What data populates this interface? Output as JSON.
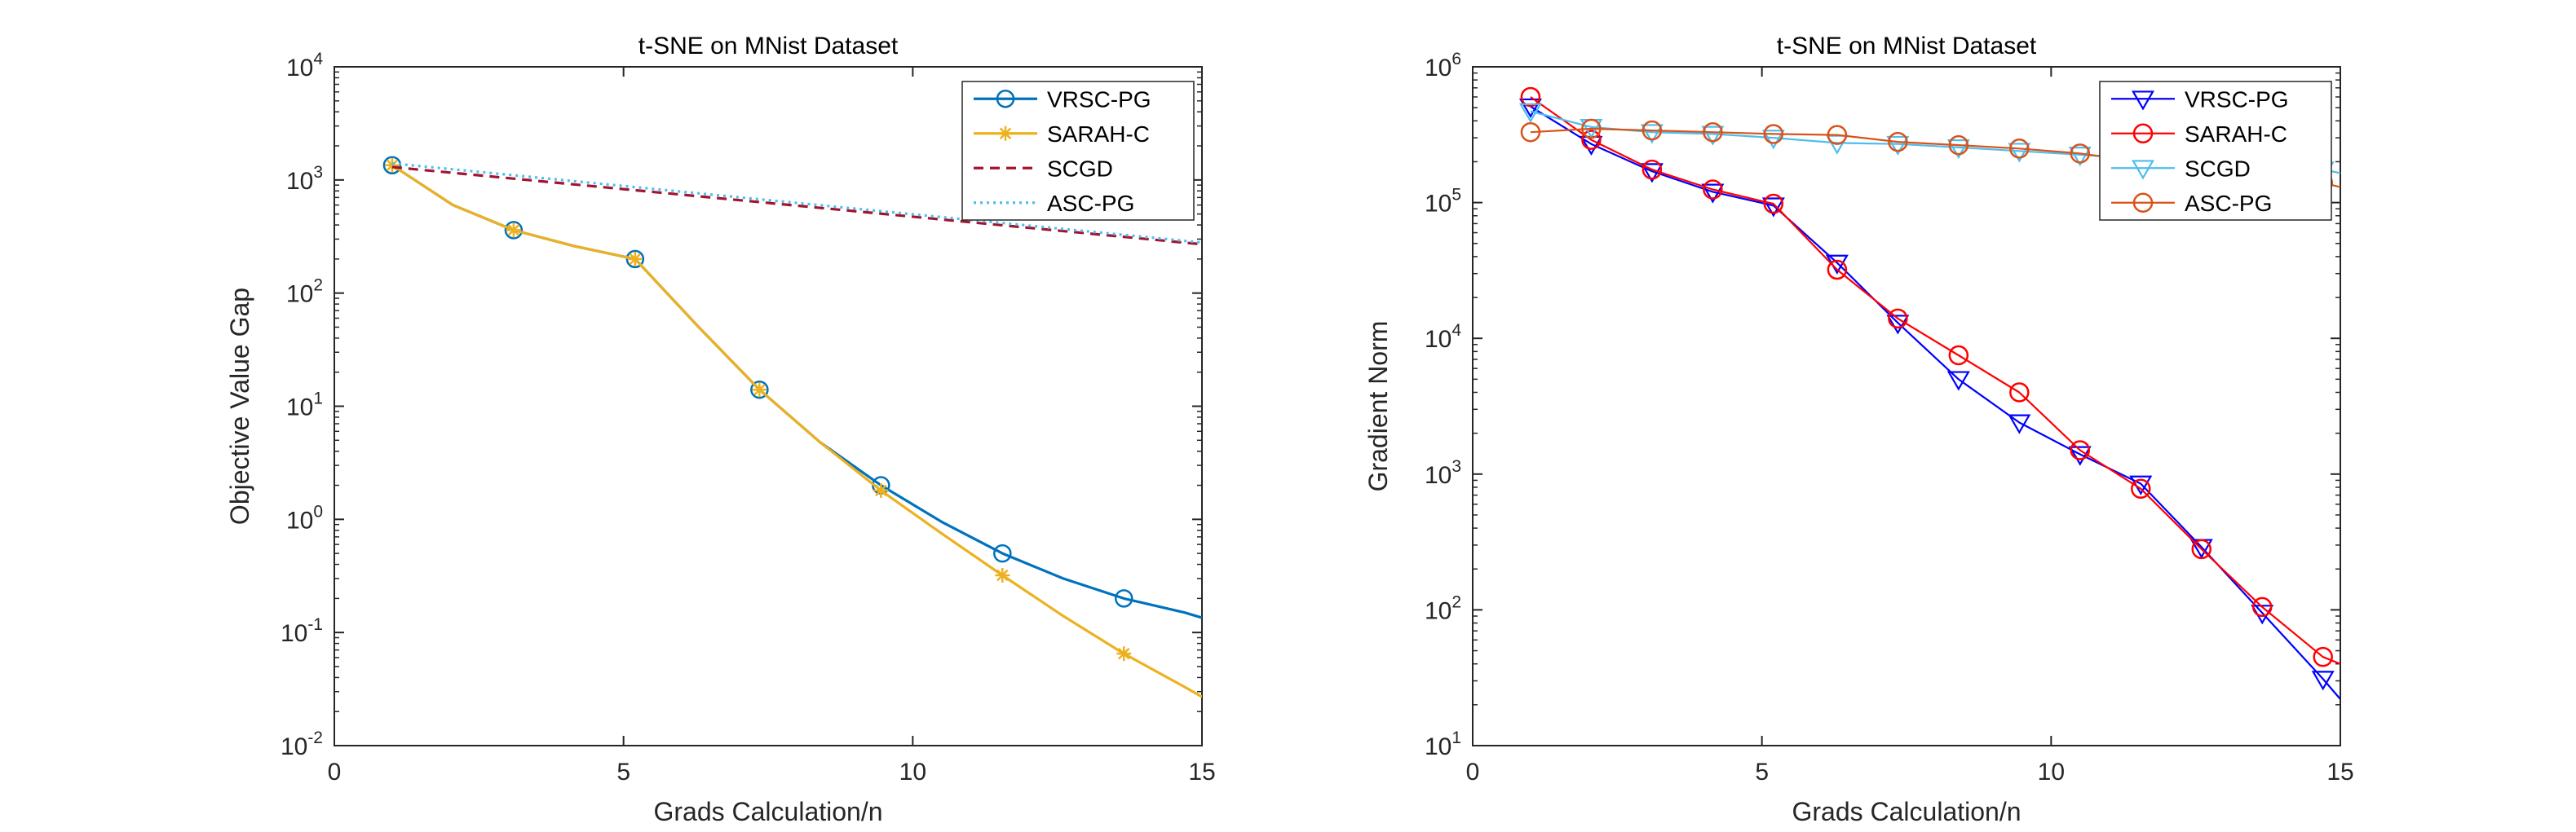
{
  "chart_data": [
    {
      "type": "line",
      "title": "t-SNE on MNist Dataset",
      "xlabel": "Grads Calculation/n",
      "ylabel": "Objective Value Gap",
      "xlim": [
        0,
        15
      ],
      "ylim": [
        0.01,
        10000
      ],
      "yscale": "log",
      "xticks": [
        "0",
        "5",
        "10",
        "15"
      ],
      "xtick_values": [
        0,
        5,
        10,
        15
      ],
      "yticks": [
        {
          "value": 0.01,
          "base": "10",
          "exp": "-2"
        },
        {
          "value": 0.1,
          "base": "10",
          "exp": "-1"
        },
        {
          "value": 1,
          "base": "10",
          "exp": "0"
        },
        {
          "value": 10,
          "base": "10",
          "exp": "1"
        },
        {
          "value": 100,
          "base": "10",
          "exp": "2"
        },
        {
          "value": 1000,
          "base": "10",
          "exp": "3"
        },
        {
          "value": 10000,
          "base": "10",
          "exp": "4"
        }
      ],
      "grid": false,
      "legend_position": "top-right",
      "series": [
        {
          "name": "VRSC-PG",
          "color": "#0072BD",
          "line_style": "solid",
          "marker": "circle",
          "x": [
            1,
            2.05,
            3.1,
            4.15,
            5.2,
            6.3,
            7.35,
            8.4,
            9.45,
            10.5,
            11.55,
            12.6,
            13.65,
            14.7,
            15
          ],
          "y": [
            1350,
            600,
            360,
            260,
            200,
            50,
            14,
            4.8,
            2.0,
            0.95,
            0.5,
            0.3,
            0.2,
            0.15,
            0.135
          ],
          "marker_x": [
            1,
            3.1,
            5.2,
            7.35,
            9.45,
            11.55,
            13.65
          ],
          "marker_y": [
            1350,
            360,
            200,
            14,
            2.0,
            0.5,
            0.2
          ]
        },
        {
          "name": "SARAH-C",
          "color": "#EDB120",
          "line_style": "solid",
          "marker": "asterisk",
          "x": [
            1,
            2.05,
            3.1,
            4.15,
            5.2,
            6.3,
            7.35,
            8.4,
            9.45,
            10.5,
            11.55,
            12.6,
            13.65,
            14.7,
            15
          ],
          "y": [
            1350,
            600,
            360,
            260,
            200,
            50,
            14,
            4.8,
            1.8,
            0.75,
            0.32,
            0.14,
            0.065,
            0.033,
            0.027
          ],
          "marker_x": [
            1,
            3.1,
            5.2,
            7.35,
            9.45,
            11.55,
            13.65
          ],
          "marker_y": [
            1350,
            360,
            200,
            14,
            1.8,
            0.32,
            0.065
          ]
        },
        {
          "name": "SCGD",
          "color": "#A2142F",
          "line_style": "dashed",
          "marker": "none",
          "x": [
            1,
            15
          ],
          "y": [
            1300,
            270
          ]
        },
        {
          "name": "ASC-PG",
          "color": "#4DBEEE",
          "line_style": "dotted",
          "marker": "none",
          "x": [
            1,
            15
          ],
          "y": [
            1400,
            280
          ]
        }
      ]
    },
    {
      "type": "line",
      "title": "t-SNE on MNist Dataset",
      "xlabel": "Grads Calculation/n",
      "ylabel": "Gradient Norm",
      "xlim": [
        0,
        15
      ],
      "ylim": [
        10,
        1000000
      ],
      "yscale": "log",
      "xticks": [
        "0",
        "5",
        "10",
        "15"
      ],
      "xtick_values": [
        0,
        5,
        10,
        15
      ],
      "yticks": [
        {
          "value": 10,
          "base": "10",
          "exp": "1"
        },
        {
          "value": 100,
          "base": "10",
          "exp": "2"
        },
        {
          "value": 1000,
          "base": "10",
          "exp": "3"
        },
        {
          "value": 10000,
          "base": "10",
          "exp": "4"
        },
        {
          "value": 100000,
          "base": "10",
          "exp": "5"
        },
        {
          "value": 1000000,
          "base": "10",
          "exp": "6"
        }
      ],
      "grid": false,
      "legend_position": "top-right",
      "series": [
        {
          "name": "VRSC-PG",
          "color": "#0000FF",
          "line_style": "solid",
          "marker": "triangle-down",
          "x": [
            1,
            2.05,
            3.1,
            4.15,
            5.2,
            6.3,
            7.35,
            8.4,
            9.45,
            10.5,
            11.55,
            12.6,
            13.65,
            14.7,
            15
          ],
          "y": [
            510000,
            270000,
            170000,
            120000,
            95000,
            36000,
            13000,
            5000,
            2400,
            1400,
            850,
            290,
            95,
            31,
            22
          ],
          "marker_x": [
            1,
            2.05,
            3.1,
            4.15,
            5.2,
            6.3,
            7.35,
            8.4,
            9.45,
            10.5,
            11.55,
            12.6,
            13.65,
            14.7
          ],
          "marker_y": [
            510000,
            270000,
            170000,
            120000,
            95000,
            36000,
            13000,
            5000,
            2400,
            1400,
            850,
            290,
            95,
            31
          ]
        },
        {
          "name": "SARAH-C",
          "color": "#FF0000",
          "line_style": "solid",
          "marker": "circle",
          "x": [
            1,
            2.05,
            3.1,
            4.15,
            5.2,
            6.3,
            7.35,
            8.4,
            9.45,
            10.5,
            11.55,
            12.6,
            13.65,
            14.7,
            15
          ],
          "y": [
            600000,
            290000,
            175000,
            125000,
            98000,
            32000,
            14000,
            7500,
            4000,
            1500,
            780,
            280,
            105,
            45,
            40
          ],
          "marker_x": [
            1,
            2.05,
            3.1,
            4.15,
            5.2,
            6.3,
            7.35,
            8.4,
            9.45,
            10.5,
            11.55,
            12.6,
            13.65,
            14.7
          ],
          "marker_y": [
            600000,
            290000,
            175000,
            125000,
            98000,
            32000,
            14000,
            7500,
            4000,
            1500,
            780,
            280,
            105,
            45
          ]
        },
        {
          "name": "SCGD",
          "color": "#4DBEEE",
          "line_style": "solid",
          "marker": "triangle-down",
          "x": [
            1,
            2.05,
            3.1,
            4.15,
            5.2,
            6.3,
            7.35,
            8.4,
            9.45,
            10.5,
            11.55,
            12.6,
            13.65,
            14.7,
            15
          ],
          "y": [
            470000,
            360000,
            330000,
            320000,
            300000,
            275000,
            270000,
            255000,
            240000,
            225000,
            210000,
            200000,
            190000,
            175000,
            165000
          ],
          "marker_x": [
            1,
            2.05,
            3.1,
            4.15,
            5.2,
            6.3,
            7.35,
            8.4,
            9.45,
            10.5,
            11.55,
            12.6,
            13.65,
            14.7
          ],
          "marker_y": [
            470000,
            360000,
            330000,
            320000,
            300000,
            275000,
            270000,
            255000,
            240000,
            225000,
            210000,
            200000,
            190000,
            175000
          ]
        },
        {
          "name": "ASC-PG",
          "color": "#D95319",
          "line_style": "solid",
          "marker": "circle",
          "x": [
            1,
            2.05,
            3.1,
            4.15,
            5.2,
            6.3,
            7.35,
            8.4,
            9.45,
            10.5,
            11.55,
            12.6,
            13.65,
            14.7,
            15
          ],
          "y": [
            330000,
            350000,
            340000,
            330000,
            320000,
            315000,
            280000,
            265000,
            250000,
            230000,
            200000,
            180000,
            160000,
            140000,
            130000
          ],
          "marker_x": [
            1,
            2.05,
            3.1,
            4.15,
            5.2,
            6.3,
            7.35,
            8.4,
            9.45,
            10.5,
            11.55,
            12.6,
            13.65,
            14.7
          ],
          "marker_y": [
            330000,
            350000,
            340000,
            330000,
            320000,
            315000,
            280000,
            265000,
            250000,
            230000,
            200000,
            180000,
            160000,
            140000
          ]
        }
      ]
    }
  ]
}
